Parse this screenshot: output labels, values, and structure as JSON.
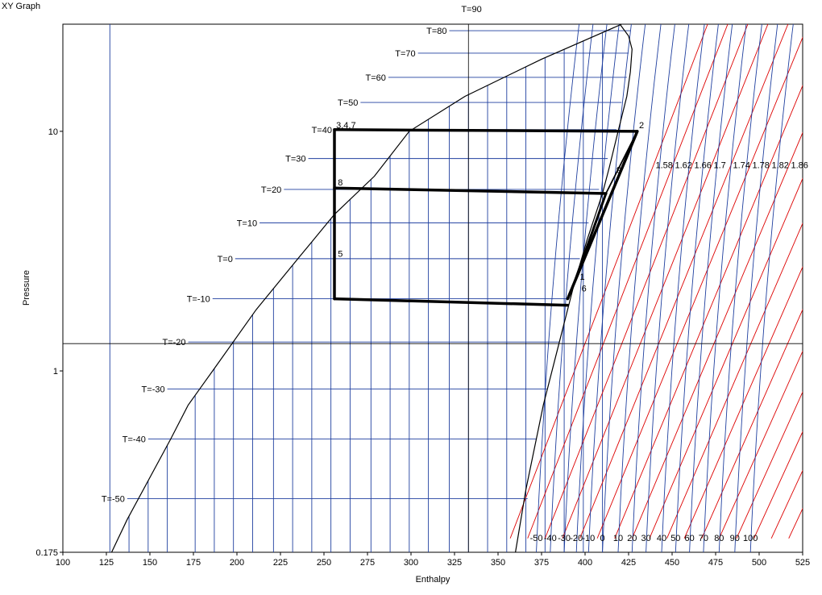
{
  "window": {
    "title": "XY Graph"
  },
  "chart_data": {
    "type": "line",
    "title": "",
    "xlabel": "Enthalpy",
    "ylabel": "Pressure",
    "xlim": [
      100,
      525
    ],
    "ylim": [
      0.175,
      28
    ],
    "y_scale": "log",
    "grid": false,
    "x_ticks": [
      100,
      125,
      150,
      175,
      200,
      225,
      250,
      275,
      300,
      325,
      350,
      375,
      400,
      425,
      450,
      475,
      500,
      525
    ],
    "y_ticks": [
      {
        "value": 0.175,
        "label": "0.175"
      },
      {
        "value": 1,
        "label": "1"
      },
      {
        "value": 10,
        "label": "10"
      }
    ],
    "crosshair": {
      "h": 333,
      "p": 1.3
    },
    "colors": {
      "saturation": "#000000",
      "isotherm": "#1f3f9f",
      "isentrope": "#dd0000",
      "cycle": "#000000"
    },
    "saturation_liquid": [
      [
        128,
        0.175
      ],
      [
        137,
        0.24
      ],
      [
        162,
        0.52
      ],
      [
        172,
        0.72
      ],
      [
        186,
        1.0
      ],
      [
        211,
        1.8
      ],
      [
        236,
        3.0
      ],
      [
        256,
        4.5
      ],
      [
        279,
        6.5
      ],
      [
        299,
        10.0
      ],
      [
        331,
        14.0
      ],
      [
        375,
        20.0
      ],
      [
        421,
        28.0
      ]
    ],
    "saturation_vapor": [
      [
        360,
        0.175
      ],
      [
        366,
        0.32
      ],
      [
        376,
        0.72
      ],
      [
        385,
        1.3
      ],
      [
        393,
        2.2
      ],
      [
        401,
        3.5
      ],
      [
        410,
        5.5
      ],
      [
        414,
        7.1
      ],
      [
        419,
        10.0
      ],
      [
        424,
        14.0
      ],
      [
        426,
        17.7
      ],
      [
        427,
        22.0
      ],
      [
        425,
        25.0
      ],
      [
        420,
        28.0
      ]
    ],
    "subcooled_isotherm_h": [
      127,
      138,
      149,
      160,
      176,
      187,
      198,
      209,
      221,
      232,
      243,
      254,
      265,
      277,
      288,
      299,
      310,
      322,
      333,
      344,
      355,
      366,
      377,
      388,
      399,
      410
    ],
    "isobar_series": [
      {
        "label": "T=-50",
        "p": 0.293,
        "h_liq": 137,
        "h_vap": 367
      },
      {
        "label": "T=-40",
        "p": 0.52,
        "h_liq": 149,
        "h_vap": 372
      },
      {
        "label": "T=-30",
        "p": 0.84,
        "h_liq": 160,
        "h_vap": 378
      },
      {
        "label": "T=-20",
        "p": 1.32,
        "h_liq": 172,
        "h_vap": 385
      },
      {
        "label": "T=-10",
        "p": 2.0,
        "h_liq": 186,
        "h_vap": 391
      },
      {
        "label": "T=0",
        "p": 2.94,
        "h_liq": 199,
        "h_vap": 397
      },
      {
        "label": "T=10",
        "p": 4.15,
        "h_liq": 213,
        "h_vap": 402
      },
      {
        "label": "T=20",
        "p": 5.72,
        "h_liq": 227,
        "h_vap": 408
      },
      {
        "label": "T=30",
        "p": 7.7,
        "h_liq": 241,
        "h_vap": 413
      },
      {
        "label": "T=40",
        "p": 10.16,
        "h_liq": 256,
        "h_vap": 418
      },
      {
        "label": "T=50",
        "p": 13.2,
        "h_liq": 271,
        "h_vap": 421
      },
      {
        "label": "T=60",
        "p": 16.8,
        "h_liq": 287,
        "h_vap": 424
      },
      {
        "label": "T=70",
        "p": 21.2,
        "h_liq": 304,
        "h_vap": 425
      },
      {
        "label": "T=80",
        "p": 26.3,
        "h_liq": 322,
        "h_vap": 426
      },
      {
        "label": "T=90",
        "p": 32.4,
        "h_liq": 342,
        "h_vap": 426
      }
    ],
    "superheat_isotherms": [
      {
        "label": "-50",
        "h_base": 372
      },
      {
        "label": "-40",
        "h_base": 380
      },
      {
        "label": "-30",
        "h_base": 388
      },
      {
        "label": "-20",
        "h_base": 395
      },
      {
        "label": "-10",
        "h_base": 402
      },
      {
        "label": "0",
        "h_base": 410
      },
      {
        "label": "10",
        "h_base": 419
      },
      {
        "label": "20",
        "h_base": 427
      },
      {
        "label": "30",
        "h_base": 435
      },
      {
        "label": "40",
        "h_base": 444
      },
      {
        "label": "50",
        "h_base": 452
      },
      {
        "label": "60",
        "h_base": 460
      },
      {
        "label": "70",
        "h_base": 468
      },
      {
        "label": "80",
        "h_base": 477
      },
      {
        "label": "90",
        "h_base": 486
      },
      {
        "label": "100",
        "h_base": 495
      }
    ],
    "isentropes": [
      {
        "label": "1.58",
        "h_base": 357,
        "slope": 14.7
      },
      {
        "label": "1.62",
        "h_base": 367,
        "slope": 14.9
      },
      {
        "label": "1.66",
        "h_base": 377,
        "slope": 15.1
      },
      {
        "label": "1.7",
        "h_base": 387,
        "slope": 15.3
      },
      {
        "label": "1.74",
        "h_base": 397,
        "slope": 15.5
      },
      {
        "label": "1.78",
        "h_base": 407,
        "slope": 15.7
      },
      {
        "label": "1.82",
        "h_base": 417,
        "slope": 15.9
      },
      {
        "label": "1.86",
        "h_base": 427,
        "slope": 16.1
      },
      {
        "label": "",
        "h_base": 437,
        "slope": 16.3
      },
      {
        "label": "",
        "h_base": 447,
        "slope": 16.5
      },
      {
        "label": "",
        "h_base": 457,
        "slope": 16.7
      },
      {
        "label": "",
        "h_base": 467,
        "slope": 16.9
      },
      {
        "label": "",
        "h_base": 477,
        "slope": 17.1
      },
      {
        "label": "",
        "h_base": 487,
        "slope": 17.3
      },
      {
        "label": "",
        "h_base": 497,
        "slope": 17.5
      },
      {
        "label": "",
        "h_base": 507,
        "slope": 17.7
      },
      {
        "label": "",
        "h_base": 517,
        "slope": 17.9
      }
    ],
    "cycle_lines": [
      {
        "points": [
          [
            256,
            10.16
          ],
          [
            430,
            10.0
          ]
        ],
        "width": 3.5
      },
      {
        "points": [
          [
            256,
            10.16
          ],
          [
            256,
            2.0
          ]
        ],
        "width": 3.5
      },
      {
        "points": [
          [
            256,
            5.8
          ],
          [
            412,
            5.5
          ]
        ],
        "width": 3.5
      },
      {
        "points": [
          [
            256,
            2.0
          ],
          [
            390,
            1.88
          ]
        ],
        "width": 3.5
      },
      {
        "points": [
          [
            390,
            2.0
          ],
          [
            430,
            10.0
          ]
        ],
        "width": 3.5
      },
      {
        "points": [
          [
            394,
            2.35
          ],
          [
            412,
            5.5
          ]
        ],
        "width": 3.0
      },
      {
        "points": [
          [
            412,
            5.5
          ],
          [
            430,
            10.0
          ]
        ],
        "width": 1.8
      }
    ],
    "point_labels": [
      {
        "text": "3,4,7",
        "h": 257,
        "p": 10.3
      },
      {
        "text": "2",
        "h": 431,
        "p": 10.3
      },
      {
        "text": "8",
        "h": 258,
        "p": 5.95
      },
      {
        "text": "9",
        "h": 418,
        "p": 6.7
      },
      {
        "text": "5",
        "h": 258,
        "p": 3.0
      },
      {
        "text": "1",
        "h": 397,
        "p": 2.4
      },
      {
        "text": "6",
        "h": 398,
        "p": 2.15
      }
    ]
  }
}
